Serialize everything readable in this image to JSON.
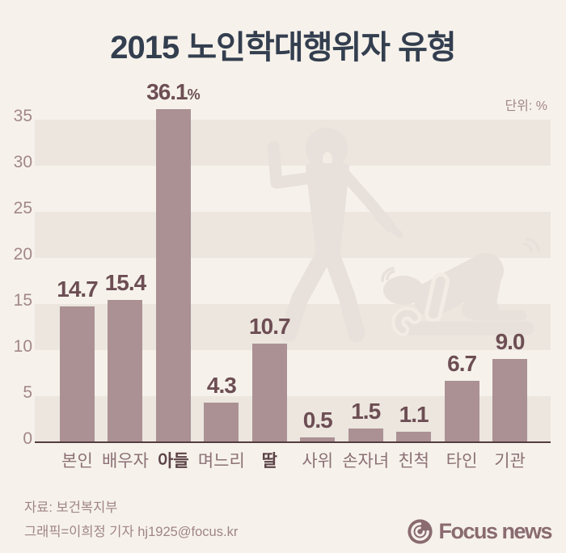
{
  "title": "2015 노인학대행위자 유형",
  "unit_label": "단위: %",
  "chart_data": {
    "type": "bar",
    "title": "2015 노인학대행위자 유형",
    "categories": [
      "본인",
      "배우자",
      "아들",
      "며느리",
      "딸",
      "사위",
      "손자녀",
      "친척",
      "타인",
      "기관"
    ],
    "values": [
      14.7,
      15.4,
      36.1,
      4.3,
      10.7,
      0.5,
      1.5,
      1.1,
      6.7,
      9.0
    ],
    "value_labels": [
      "14.7",
      "15.4",
      "36.1%",
      "4.3",
      "10.7",
      "0.5",
      "1.5",
      "1.1",
      "6.7",
      "9.0"
    ],
    "emphasized_categories": [
      "아들",
      "딸"
    ],
    "unit": "%",
    "ylim": [
      0,
      35
    ],
    "yticks": [
      0,
      5,
      10,
      15,
      20,
      25,
      30,
      35
    ],
    "grid": "alternating horizontal bands (0-5, 10-15, 20-25, 30-35 shaded)",
    "legend": "none",
    "background_art": "abuser raising hand over prostrate elderly person (watermark)"
  },
  "footer": {
    "source": "자료: 보건복지부",
    "credit": "그래픽=이희정 기자 hj1925@focus.kr"
  },
  "logo": {
    "text": "Focus news",
    "icon": "aperture-swirl-icon"
  },
  "colors": {
    "background": "#f6f2eb",
    "band": "#ece6de",
    "bar": "#ab9194",
    "value_label": "#6d4e54",
    "tick_label": "#a28689",
    "category_label": "#8c7076",
    "category_emphasis": "#5c4247",
    "title": "#333e4f",
    "footer": "#a08488",
    "logo": "#8a6b70",
    "axis_line": "#533c40",
    "watermark": "#e8e0da"
  }
}
